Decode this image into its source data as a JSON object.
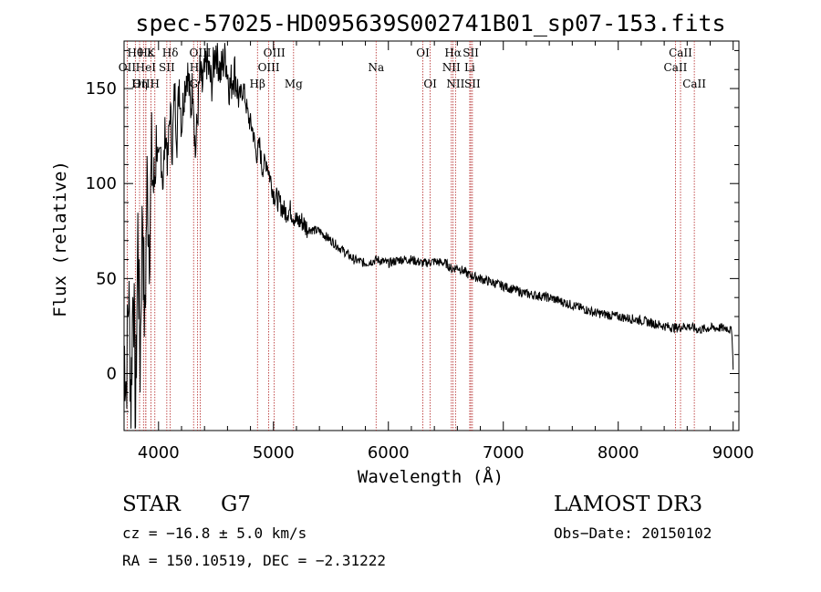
{
  "chart_data": {
    "type": "line",
    "title": "spec-57025-HD095639S002741B01_sp07-153.fits",
    "xlabel": "Wavelength (Å)",
    "ylabel": "Flux (relative)",
    "xlim": [
      3700,
      9050
    ],
    "ylim": [
      -30,
      175
    ],
    "xticks": [
      4000,
      5000,
      6000,
      7000,
      8000,
      9000
    ],
    "yticks": [
      0,
      50,
      100,
      150
    ],
    "series": [
      {
        "name": "spectrum",
        "points": [
          [
            3700,
            15
          ],
          [
            3720,
            -5
          ],
          [
            3740,
            45
          ],
          [
            3760,
            -15
          ],
          [
            3780,
            55
          ],
          [
            3800,
            -25
          ],
          [
            3820,
            75
          ],
          [
            3840,
            5
          ],
          [
            3860,
            90
          ],
          [
            3880,
            20
          ],
          [
            3900,
            100
          ],
          [
            3920,
            70
          ],
          [
            3940,
            112
          ],
          [
            3960,
            95
          ],
          [
            3980,
            125
          ],
          [
            4000,
            105
          ],
          [
            4020,
            118
          ],
          [
            4040,
            100
          ],
          [
            4060,
            130
          ],
          [
            4080,
            110
          ],
          [
            4100,
            140
          ],
          [
            4120,
            118
          ],
          [
            4140,
            150
          ],
          [
            4160,
            125
          ],
          [
            4180,
            155
          ],
          [
            4200,
            130
          ],
          [
            4220,
            148
          ],
          [
            4250,
            160
          ],
          [
            4280,
            140
          ],
          [
            4300,
            155
          ],
          [
            4320,
            115
          ],
          [
            4340,
            135
          ],
          [
            4360,
            158
          ],
          [
            4380,
            150
          ],
          [
            4420,
            165
          ],
          [
            4460,
            152
          ],
          [
            4500,
            172
          ],
          [
            4540,
            158
          ],
          [
            4580,
            168
          ],
          [
            4620,
            150
          ],
          [
            4660,
            160
          ],
          [
            4700,
            145
          ],
          [
            4740,
            150
          ],
          [
            4780,
            135
          ],
          [
            4820,
            128
          ],
          [
            4850,
            115
          ],
          [
            4880,
            120
          ],
          [
            4900,
            108
          ],
          [
            4940,
            112
          ],
          [
            5000,
            95
          ],
          [
            5050,
            90
          ],
          [
            5100,
            85
          ],
          [
            5150,
            86
          ],
          [
            5200,
            80
          ],
          [
            5250,
            80
          ],
          [
            5300,
            76
          ],
          [
            5400,
            75
          ],
          [
            5500,
            70
          ],
          [
            5600,
            65
          ],
          [
            5700,
            60
          ],
          [
            5800,
            58
          ],
          [
            5900,
            60
          ],
          [
            6000,
            58
          ],
          [
            6100,
            60
          ],
          [
            6200,
            60
          ],
          [
            6300,
            58
          ],
          [
            6400,
            59
          ],
          [
            6500,
            58
          ],
          [
            6550,
            55
          ],
          [
            6600,
            56
          ],
          [
            6700,
            52
          ],
          [
            6800,
            50
          ],
          [
            6900,
            48
          ],
          [
            7000,
            46
          ],
          [
            7100,
            44
          ],
          [
            7200,
            42
          ],
          [
            7400,
            40
          ],
          [
            7600,
            36
          ],
          [
            7800,
            32
          ],
          [
            8000,
            30
          ],
          [
            8200,
            28
          ],
          [
            8400,
            25
          ],
          [
            8500,
            24
          ],
          [
            8600,
            25
          ],
          [
            8700,
            23
          ],
          [
            8800,
            24
          ],
          [
            8900,
            24
          ],
          [
            8950,
            24
          ],
          [
            8990,
            22
          ],
          [
            9000,
            2
          ]
        ]
      }
    ],
    "lines": [
      {
        "name": "Hθ",
        "wavelength": 3798,
        "row": 1
      },
      {
        "name": "OII",
        "wavelength": 3727,
        "row": 2
      },
      {
        "name": "OIII",
        "wavelength": 3869,
        "row": 3
      },
      {
        "name": "HeI",
        "wavelength": 3889,
        "row": 2
      },
      {
        "name": "Hε",
        "wavelength": 3889,
        "row": 1
      },
      {
        "name": "K",
        "wavelength": 3934,
        "row": 1
      },
      {
        "name": "Hη",
        "wavelength": 3835,
        "row": 3
      },
      {
        "name": "H",
        "wavelength": 3968,
        "row": 3
      },
      {
        "name": "SII",
        "wavelength": 4072,
        "row": 2
      },
      {
        "name": "Hδ",
        "wavelength": 4102,
        "row": 1
      },
      {
        "name": "OIII",
        "wavelength": 4363,
        "row": 1
      },
      {
        "name": "Hγ",
        "wavelength": 4340,
        "row": 2
      },
      {
        "name": "G",
        "wavelength": 4305,
        "row": 3
      },
      {
        "name": "Hβ",
        "wavelength": 4861,
        "row": 3
      },
      {
        "name": "OIII",
        "wavelength": 5007,
        "row": 1
      },
      {
        "name": "OIII",
        "wavelength": 4959,
        "row": 2
      },
      {
        "name": "Mg",
        "wavelength": 5175,
        "row": 3
      },
      {
        "name": "Na",
        "wavelength": 5893,
        "row": 2
      },
      {
        "name": "OI",
        "wavelength": 6300,
        "row": 1
      },
      {
        "name": "OI",
        "wavelength": 6364,
        "row": 3
      },
      {
        "name": "Hα",
        "wavelength": 6563,
        "row": 1
      },
      {
        "name": "NII",
        "wavelength": 6548,
        "row": 2
      },
      {
        "name": "NII",
        "wavelength": 6584,
        "row": 3
      },
      {
        "name": "SII",
        "wavelength": 6717,
        "row": 1
      },
      {
        "name": "Li",
        "wavelength": 6708,
        "row": 2
      },
      {
        "name": "SII",
        "wavelength": 6731,
        "row": 3
      },
      {
        "name": "CaII",
        "wavelength": 8542,
        "row": 1
      },
      {
        "name": "CaII",
        "wavelength": 8498,
        "row": 2
      },
      {
        "name": "CaII",
        "wavelength": 8662,
        "row": 3
      }
    ]
  },
  "info": {
    "object_type": "STAR",
    "subclass": "G7",
    "survey": "LAMOST DR3",
    "cz": "cz = −16.8 ± 5.0 km/s",
    "obs_date": "Obs−Date: 20150102",
    "coords": "RA = 150.10519, DEC =  −2.31222"
  }
}
